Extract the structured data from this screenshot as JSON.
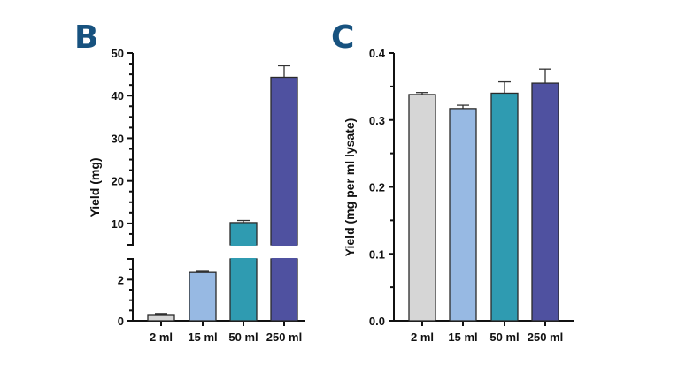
{
  "chart_data": [
    {
      "panel": "B",
      "type": "bar",
      "title": "",
      "xlabel": "",
      "ylabel": "Yield (mg)",
      "categories": [
        "2 ml",
        "15 ml",
        "50 ml",
        "250 ml"
      ],
      "values": [
        0.3,
        2.35,
        10.2,
        44.3
      ],
      "errors": [
        0.05,
        0.05,
        0.5,
        2.7
      ],
      "colors": [
        "#d6d6d6",
        "#97b9e3",
        "#2f9bb1",
        "#4f51a0"
      ],
      "axis_break": {
        "lower": [
          0,
          3
        ],
        "upper": [
          5,
          50
        ]
      },
      "yticks_lower": [
        "0",
        "2"
      ],
      "yticks_upper": [
        "10",
        "20",
        "30",
        "40",
        "50"
      ],
      "grid": false
    },
    {
      "panel": "C",
      "type": "bar",
      "title": "",
      "xlabel": "",
      "ylabel": "Yield (mg per ml lysate)",
      "categories": [
        "2 ml",
        "15 ml",
        "50 ml",
        "250 ml"
      ],
      "values": [
        0.338,
        0.317,
        0.34,
        0.355
      ],
      "errors": [
        0.003,
        0.005,
        0.017,
        0.021
      ],
      "colors": [
        "#d6d6d6",
        "#97b9e3",
        "#2f9bb1",
        "#4f51a0"
      ],
      "ylim": [
        0,
        0.4
      ],
      "yticks": [
        "0.0",
        "0.1",
        "0.2",
        "0.3",
        "0.4"
      ],
      "grid": false
    }
  ],
  "panel_letters": {
    "b": "B",
    "c": "C"
  },
  "accent_color": "#17527f"
}
